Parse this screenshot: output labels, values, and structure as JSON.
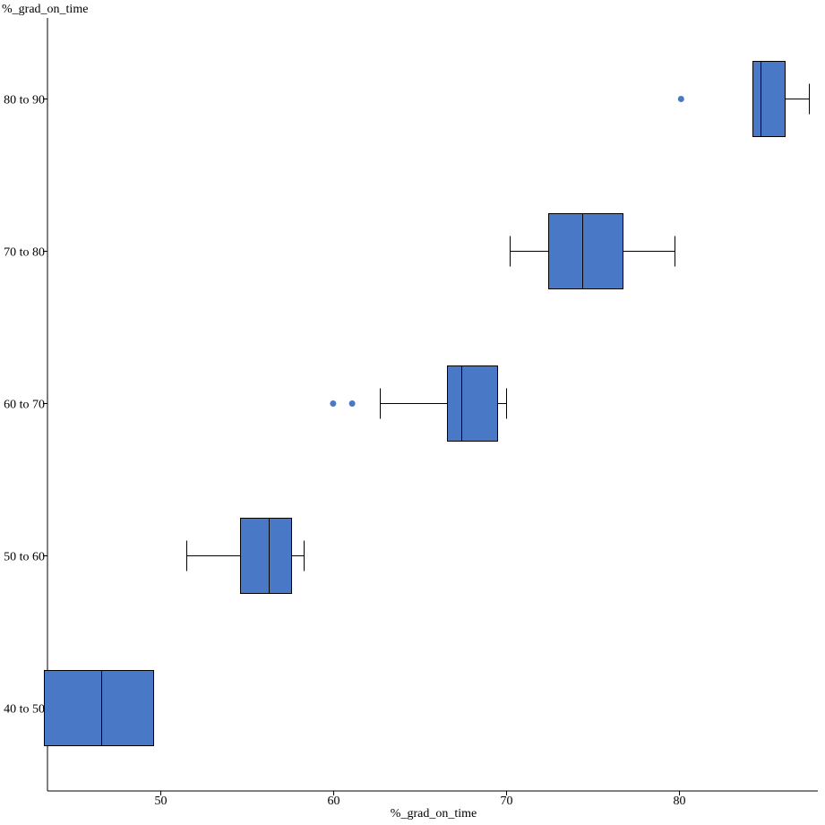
{
  "chart_data": {
    "type": "boxplot",
    "orientation": "horizontal",
    "xlabel": "%_grad_on_time",
    "ylabel": "%_grad_on_time",
    "xlim": [
      43.5,
      88
    ],
    "x_ticks": [
      50,
      60,
      70,
      80
    ],
    "categories": [
      "80 to 90",
      "70 to 80",
      "60 to 70",
      "50 to 60",
      "40 to 50"
    ],
    "series_color": "#4878c6",
    "boxes": [
      {
        "category": "80 to 90",
        "whisker_low": 84.2,
        "q1": 84.2,
        "median": 84.7,
        "q3": 86.1,
        "whisker_high": 87.5,
        "outliers": [
          80.1
        ]
      },
      {
        "category": "70 to 80",
        "whisker_low": 70.2,
        "q1": 72.4,
        "median": 74.4,
        "q3": 76.7,
        "whisker_high": 79.7,
        "outliers": []
      },
      {
        "category": "60 to 70",
        "whisker_low": 62.7,
        "q1": 66.6,
        "median": 67.4,
        "q3": 69.5,
        "whisker_high": 70.0,
        "outliers": [
          60.0,
          61.1
        ]
      },
      {
        "category": "50 to 60",
        "whisker_low": 51.5,
        "q1": 54.6,
        "median": 56.3,
        "q3": 57.6,
        "whisker_high": 58.3,
        "outliers": []
      },
      {
        "category": "40 to 50",
        "whisker_low": 43.3,
        "q1": 43.3,
        "median": 46.6,
        "q3": 49.6,
        "whisker_high": 49.6,
        "outliers": []
      }
    ]
  }
}
